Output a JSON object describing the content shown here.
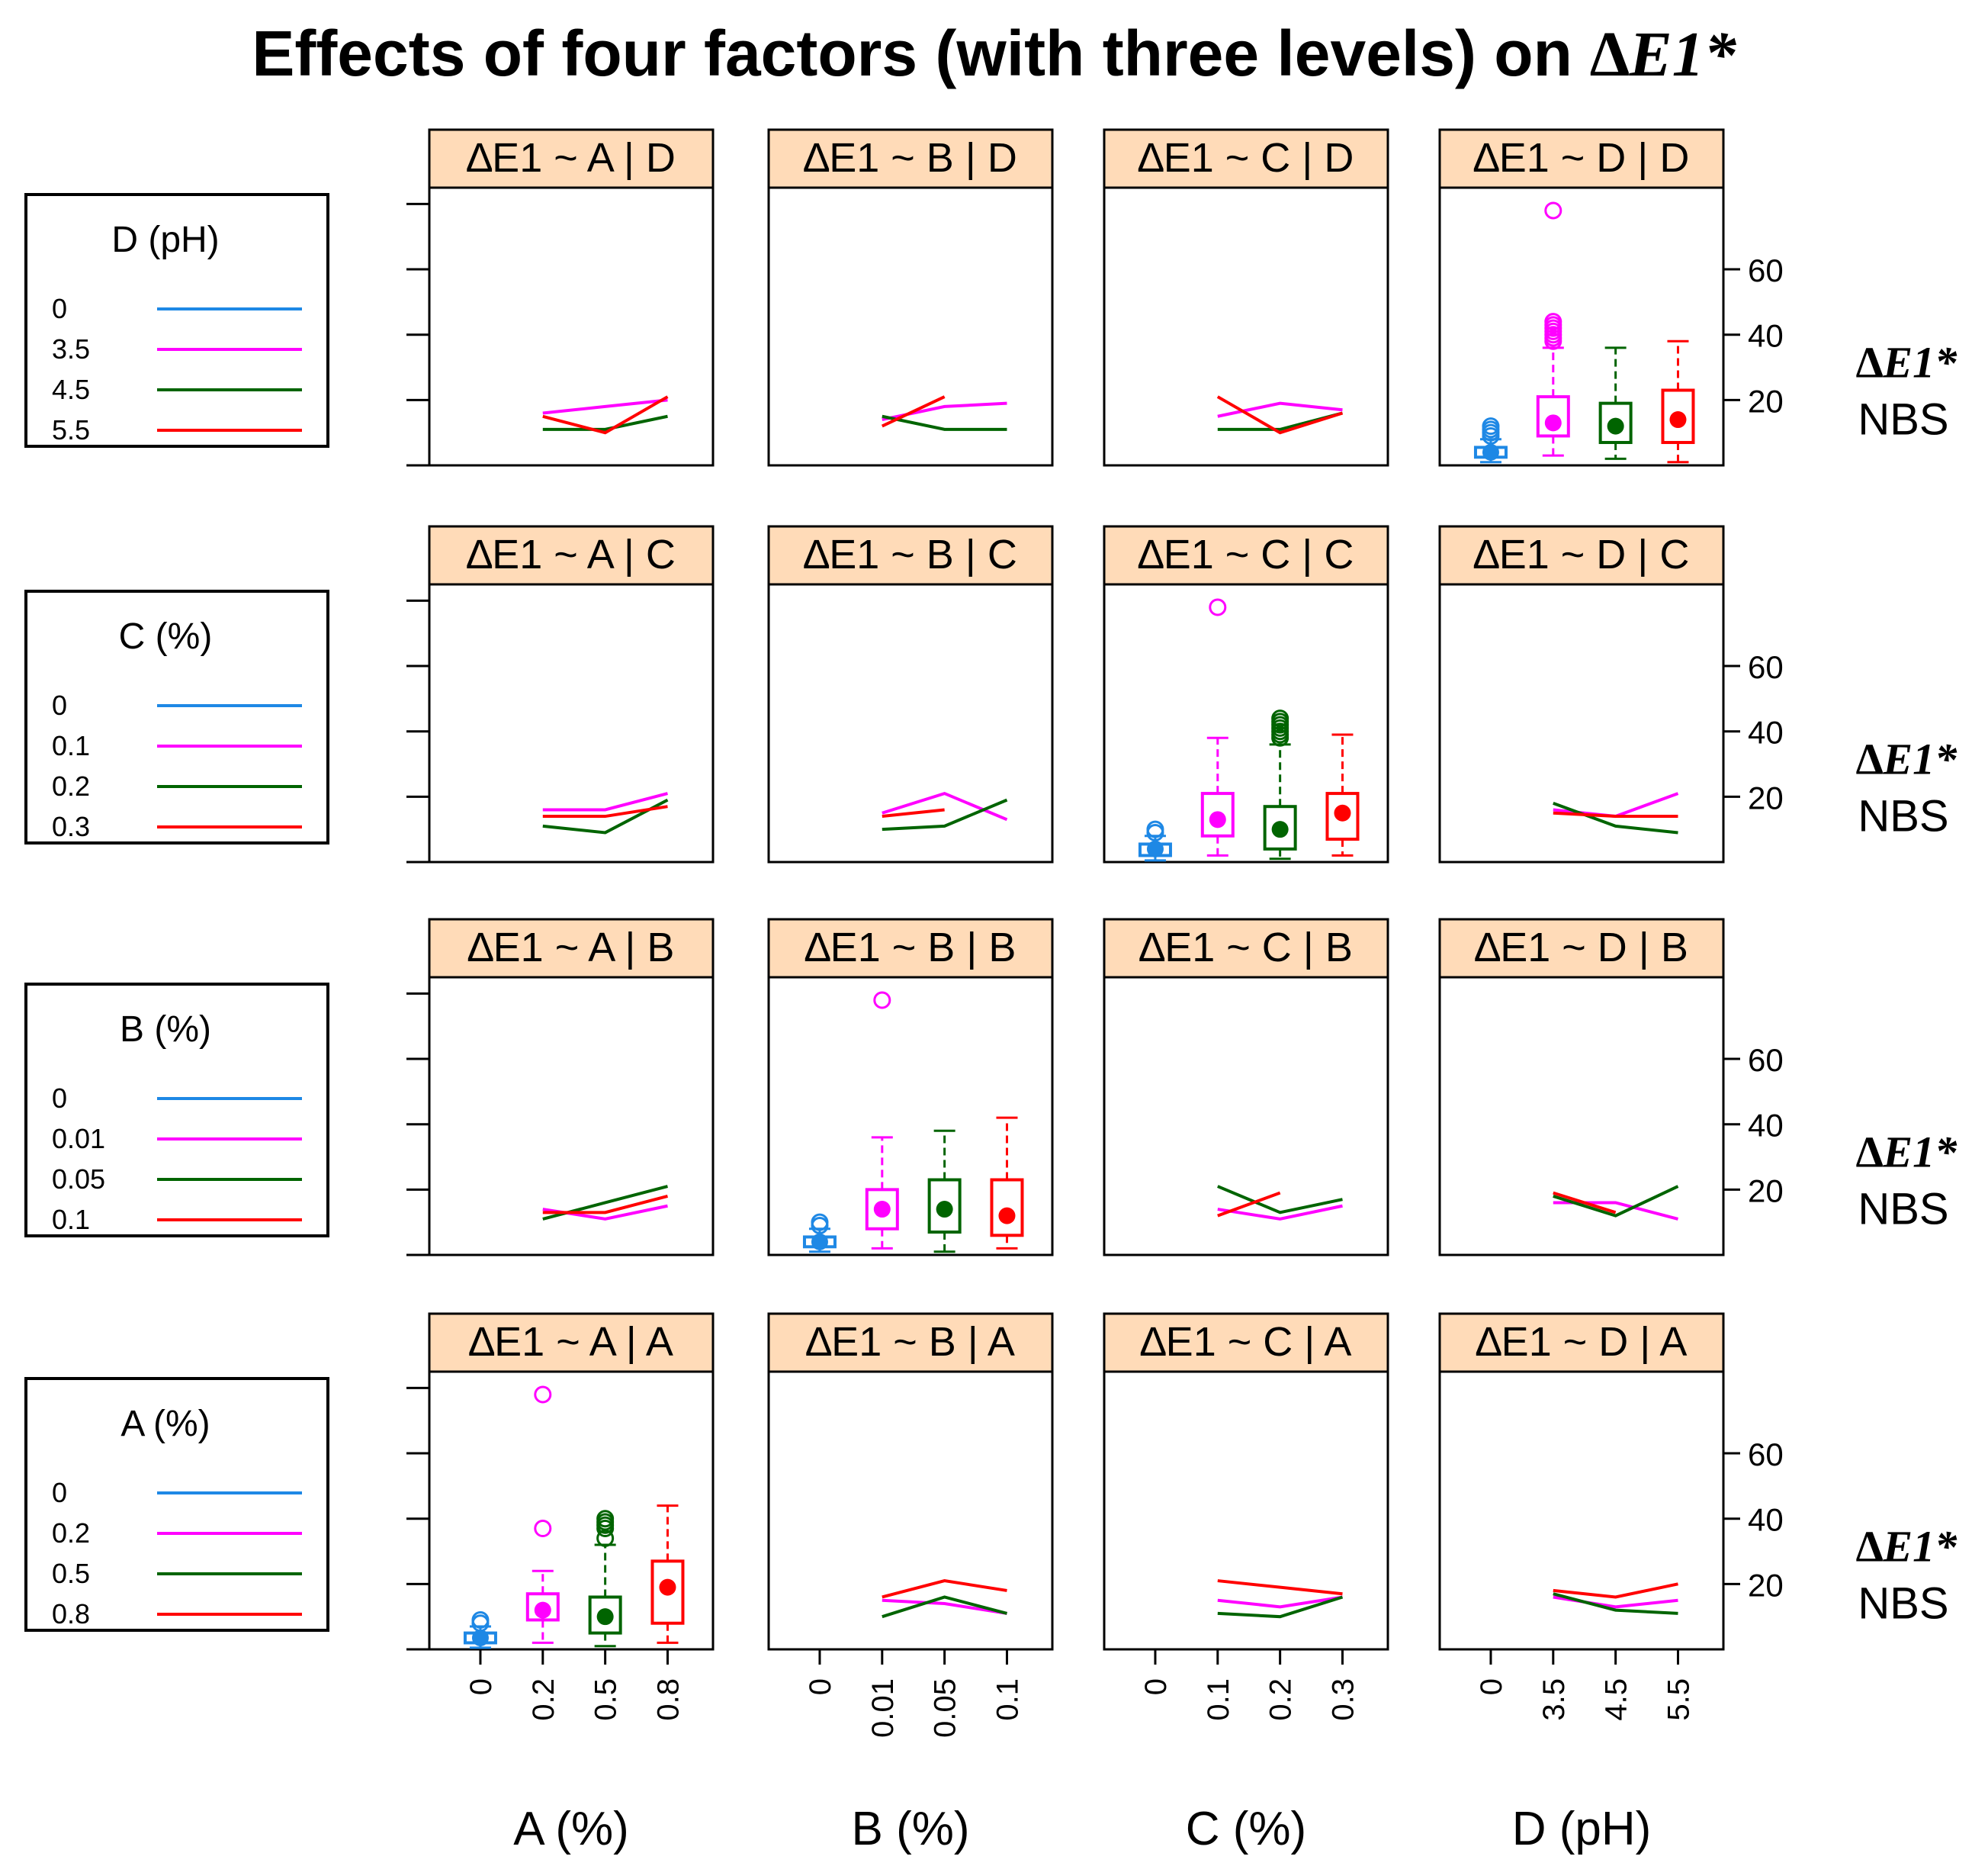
{
  "title": {
    "text": "Effects of four factors (with three levels) on",
    "response": "∆E1*"
  },
  "colors": {
    "level1": "#1e88e5",
    "level2": "#ff00ff",
    "level3": "#006400",
    "level4": "#ff0000",
    "strip": "#ffdbb8"
  },
  "chart_data": {
    "type": "box",
    "ylim": [
      0,
      85
    ],
    "yticks": [
      20,
      40,
      60
    ],
    "right_axis_label": "∆E1*",
    "right_axis_sublabel": "NBS",
    "x_axes": [
      {
        "factor": "A",
        "label": "A (%)",
        "levels": [
          "0",
          "0.2",
          "0.5",
          "0.8"
        ]
      },
      {
        "factor": "B",
        "label": "B (%)",
        "levels": [
          "0",
          "0.01",
          "0.05",
          "0.1"
        ]
      },
      {
        "factor": "C",
        "label": "C (%)",
        "levels": [
          "0",
          "0.1",
          "0.2",
          "0.3"
        ]
      },
      {
        "factor": "D",
        "label": "D (pH)",
        "levels": [
          "0",
          "3.5",
          "4.5",
          "5.5"
        ]
      }
    ],
    "rows": [
      {
        "factor": "D",
        "legend": {
          "title": "D (pH)",
          "levels": [
            "0",
            "3.5",
            "4.5",
            "5.5"
          ]
        },
        "panels": [
          {
            "strip": "∆E1 ~ A | D",
            "lines": [
              {
                "level": 1,
                "values": [
                  16,
                  18,
                  20
                ]
              },
              {
                "level": 2,
                "values": [
                  11,
                  11,
                  15
                ]
              },
              {
                "level": 3,
                "values": [
                  15,
                  10,
                  21
                ]
              }
            ]
          },
          {
            "strip": "∆E1 ~ B | D",
            "lines": [
              {
                "level": 1,
                "values": [
                  14,
                  18,
                  19
                ]
              },
              {
                "level": 2,
                "values": [
                  15,
                  11,
                  11
                ]
              },
              {
                "level": 3,
                "values": [
                  12,
                  21
                ]
              }
            ]
          },
          {
            "strip": "∆E1 ~ C | D",
            "lines": [
              {
                "level": 1,
                "values": [
                  15,
                  19,
                  17
                ]
              },
              {
                "level": 2,
                "values": [
                  11,
                  11,
                  16
                ]
              },
              {
                "level": 3,
                "values": [
                  21,
                  10,
                  16
                ]
              }
            ]
          },
          {
            "strip": "∆E1 ~ D | D",
            "boxes": [
              {
                "level": 0,
                "q1": 2.5,
                "median": 4,
                "q3": 5.5,
                "whisker_low": 1,
                "whisker_high": 8,
                "outliers": [
                  9,
                  10,
                  11,
                  12
                ]
              },
              {
                "level": 1,
                "q1": 9,
                "median": 13,
                "q3": 21,
                "whisker_low": 3,
                "whisker_high": 36,
                "outliers": [
                  38,
                  39,
                  40,
                  41,
                  42,
                  43,
                  44,
                  78
                ]
              },
              {
                "level": 2,
                "q1": 7,
                "median": 12,
                "q3": 19,
                "whisker_low": 2,
                "whisker_high": 36,
                "outliers": []
              },
              {
                "level": 3,
                "q1": 7,
                "median": 14,
                "q3": 23,
                "whisker_low": 1,
                "whisker_high": 38,
                "outliers": []
              }
            ]
          }
        ]
      },
      {
        "factor": "C",
        "legend": {
          "title": "C (%)",
          "levels": [
            "0",
            "0.1",
            "0.2",
            "0.3"
          ]
        },
        "panels": [
          {
            "strip": "∆E1 ~ A | C",
            "lines": [
              {
                "level": 1,
                "values": [
                  16,
                  16,
                  21
                ]
              },
              {
                "level": 2,
                "values": [
                  11,
                  9,
                  19
                ]
              },
              {
                "level": 3,
                "values": [
                  14,
                  14,
                  17
                ]
              }
            ]
          },
          {
            "strip": "∆E1 ~ B | C",
            "lines": [
              {
                "level": 1,
                "values": [
                  15,
                  21,
                  13
                ]
              },
              {
                "level": 2,
                "values": [
                  10,
                  11,
                  19
                ]
              },
              {
                "level": 3,
                "values": [
                  14,
                  16
                ]
              }
            ]
          },
          {
            "strip": "∆E1 ~ C | C",
            "boxes": [
              {
                "level": 0,
                "q1": 2,
                "median": 4,
                "q3": 5.5,
                "whisker_low": 0.5,
                "whisker_high": 8,
                "outliers": [
                  9,
                  10
                ]
              },
              {
                "level": 1,
                "q1": 8,
                "median": 13,
                "q3": 21,
                "whisker_low": 2,
                "whisker_high": 38,
                "outliers": [
                  78
                ]
              },
              {
                "level": 2,
                "q1": 4,
                "median": 10,
                "q3": 17,
                "whisker_low": 1,
                "whisker_high": 36,
                "outliers": [
                  38,
                  39,
                  40,
                  41,
                  42,
                  43,
                  44
                ]
              },
              {
                "level": 3,
                "q1": 7,
                "median": 15,
                "q3": 21,
                "whisker_low": 2,
                "whisker_high": 39,
                "outliers": []
              }
            ]
          },
          {
            "strip": "∆E1 ~ D | C",
            "lines": [
              {
                "level": 1,
                "values": [
                  16,
                  14,
                  21
                ]
              },
              {
                "level": 2,
                "values": [
                  18,
                  11,
                  9
                ]
              },
              {
                "level": 3,
                "values": [
                  15,
                  14,
                  14
                ]
              }
            ]
          }
        ]
      },
      {
        "factor": "B",
        "legend": {
          "title": "B (%)",
          "levels": [
            "0",
            "0.01",
            "0.05",
            "0.1"
          ]
        },
        "panels": [
          {
            "strip": "∆E1 ~ A | B",
            "lines": [
              {
                "level": 1,
                "values": [
                  14,
                  11,
                  15
                ]
              },
              {
                "level": 2,
                "values": [
                  11,
                  16,
                  21
                ]
              },
              {
                "level": 3,
                "values": [
                  13,
                  13,
                  18
                ]
              }
            ]
          },
          {
            "strip": "∆E1 ~ B | B",
            "boxes": [
              {
                "level": 0,
                "q1": 2.5,
                "median": 4,
                "q3": 5.5,
                "whisker_low": 1,
                "whisker_high": 8,
                "outliers": [
                  9,
                  10
                ]
              },
              {
                "level": 1,
                "q1": 8,
                "median": 14,
                "q3": 20,
                "whisker_low": 2,
                "whisker_high": 36,
                "outliers": [
                  78
                ]
              },
              {
                "level": 2,
                "q1": 7,
                "median": 14,
                "q3": 23,
                "whisker_low": 1,
                "whisker_high": 38,
                "outliers": []
              },
              {
                "level": 3,
                "q1": 6,
                "median": 12,
                "q3": 23,
                "whisker_low": 2,
                "whisker_high": 42,
                "outliers": []
              }
            ]
          },
          {
            "strip": "∆E1 ~ C | B",
            "lines": [
              {
                "level": 1,
                "values": [
                  14,
                  11,
                  15
                ]
              },
              {
                "level": 2,
                "values": [
                  21,
                  13,
                  17
                ]
              },
              {
                "level": 3,
                "values": [
                  12,
                  19
                ]
              }
            ]
          },
          {
            "strip": "∆E1 ~ D | B",
            "lines": [
              {
                "level": 1,
                "values": [
                  16,
                  16,
                  11
                ]
              },
              {
                "level": 2,
                "values": [
                  18,
                  12,
                  21
                ]
              },
              {
                "level": 3,
                "values": [
                  19,
                  13
                ]
              }
            ]
          }
        ]
      },
      {
        "factor": "A",
        "legend": {
          "title": "A (%)",
          "levels": [
            "0",
            "0.2",
            "0.5",
            "0.8"
          ]
        },
        "panels": [
          {
            "strip": "∆E1 ~ A | A",
            "boxes": [
              {
                "level": 0,
                "q1": 2,
                "median": 3.5,
                "q3": 5,
                "whisker_low": 0.5,
                "whisker_high": 7,
                "outliers": [
                  8,
                  9
                ]
              },
              {
                "level": 1,
                "q1": 9,
                "median": 12,
                "q3": 17,
                "whisker_low": 2,
                "whisker_high": 24,
                "outliers": [
                  37,
                  78
                ]
              },
              {
                "level": 2,
                "q1": 5,
                "median": 10,
                "q3": 16,
                "whisker_low": 1,
                "whisker_high": 32,
                "outliers": [
                  34,
                  37,
                  38,
                  39,
                  40
                ]
              },
              {
                "level": 3,
                "q1": 8,
                "median": 19,
                "q3": 27,
                "whisker_low": 2,
                "whisker_high": 44,
                "outliers": []
              }
            ]
          },
          {
            "strip": "∆E1 ~ B | A",
            "lines": [
              {
                "level": 1,
                "values": [
                  15,
                  14,
                  11
                ]
              },
              {
                "level": 2,
                "values": [
                  10,
                  16,
                  11
                ]
              },
              {
                "level": 3,
                "values": [
                  16,
                  21,
                  18
                ]
              }
            ]
          },
          {
            "strip": "∆E1 ~ C | A",
            "lines": [
              {
                "level": 1,
                "values": [
                  15,
                  13,
                  16
                ]
              },
              {
                "level": 2,
                "values": [
                  11,
                  10,
                  16
                ]
              },
              {
                "level": 3,
                "values": [
                  21,
                  19,
                  17
                ]
              }
            ]
          },
          {
            "strip": "∆E1 ~ D | A",
            "lines": [
              {
                "level": 1,
                "values": [
                  16,
                  13,
                  15
                ]
              },
              {
                "level": 2,
                "values": [
                  17,
                  12,
                  11
                ]
              },
              {
                "level": 3,
                "values": [
                  18,
                  16,
                  20
                ]
              }
            ]
          }
        ]
      }
    ]
  }
}
